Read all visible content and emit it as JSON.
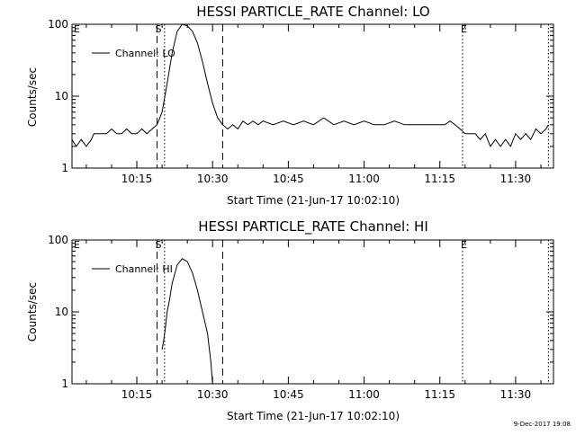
{
  "footer_stamp": "9-Dec-2017 19:08",
  "chart_data": [
    {
      "type": "line",
      "title": "HESSI PARTICLE_RATE Channel: LO",
      "xlabel": "Start Time (21-Jun-17 10:02:10)",
      "ylabel": "Counts/sec",
      "yscale": "log",
      "ylim": [
        1,
        100
      ],
      "xlim": [
        "10:02:10",
        "11:37:30"
      ],
      "x_tick_labels": [
        "10:15",
        "10:30",
        "10:45",
        "11:00",
        "11:15",
        "11:30"
      ],
      "y_tick_labels": [
        "1",
        "10",
        "100"
      ],
      "legend": {
        "placement": "top-left",
        "entries": [
          "Channel: LO"
        ]
      },
      "markers": [
        {
          "label": "E",
          "time": "10:02:10",
          "style": "none"
        },
        {
          "label": "S",
          "time": "10:19:00",
          "style": "dashed"
        },
        {
          "label": "",
          "time": "10:20:30",
          "style": "dotted"
        },
        {
          "label": "",
          "time": "10:32:00",
          "style": "dashed"
        },
        {
          "label": "E",
          "time": "11:19:30",
          "style": "dotted"
        },
        {
          "label": "",
          "time": "11:36:30",
          "style": "dotted"
        }
      ],
      "series": [
        {
          "name": "Channel: LO",
          "x": [
            "10:02:10",
            "10:03:00",
            "10:04:00",
            "10:05:00",
            "10:06:00",
            "10:06:30",
            "10:08:00",
            "10:09:00",
            "10:10:00",
            "10:11:00",
            "10:12:00",
            "10:13:00",
            "10:14:00",
            "10:15:00",
            "10:16:00",
            "10:17:00",
            "10:18:00",
            "10:19:00",
            "10:20:00",
            "10:21:00",
            "10:22:00",
            "10:23:00",
            "10:24:00",
            "10:25:00",
            "10:26:00",
            "10:27:00",
            "10:28:00",
            "10:29:00",
            "10:30:00",
            "10:31:00",
            "10:32:00",
            "10:33:00",
            "10:34:00",
            "10:35:00",
            "10:36:00",
            "10:37:00",
            "10:38:00",
            "10:39:00",
            "10:40:00",
            "10:42:00",
            "10:44:00",
            "10:46:00",
            "10:48:00",
            "10:50:00",
            "10:52:00",
            "10:54:00",
            "10:56:00",
            "10:58:00",
            "11:00:00",
            "11:02:00",
            "11:04:00",
            "11:06:00",
            "11:08:00",
            "11:10:00",
            "11:12:00",
            "11:14:00",
            "11:16:00",
            "11:17:00",
            "11:18:00",
            "11:19:00",
            "11:20:00",
            "11:21:00",
            "11:22:00",
            "11:23:00",
            "11:24:00",
            "11:25:00",
            "11:26:00",
            "11:27:00",
            "11:28:00",
            "11:29:00",
            "11:30:00",
            "11:31:00",
            "11:32:00",
            "11:33:00",
            "11:34:00",
            "11:35:00",
            "11:36:00",
            "11:36:30"
          ],
          "y": [
            2.5,
            2,
            2.5,
            2,
            2.5,
            3,
            3,
            3,
            3.5,
            3,
            3,
            3.5,
            3,
            3,
            3.5,
            3,
            3.5,
            4,
            6,
            15,
            40,
            80,
            100,
            95,
            80,
            55,
            30,
            15,
            8,
            5,
            4,
            3.5,
            4,
            3.5,
            4.5,
            4,
            4.5,
            4,
            4.5,
            4,
            4.5,
            4,
            4.5,
            4,
            5,
            4,
            4.5,
            4,
            4.5,
            4,
            4,
            4.5,
            4,
            4,
            4,
            4,
            4,
            4.5,
            4,
            3.5,
            3,
            3,
            3,
            2.5,
            3,
            2,
            2.5,
            2,
            2.5,
            2,
            3,
            2.5,
            3,
            2.5,
            3.5,
            3,
            3.5,
            4
          ]
        }
      ]
    },
    {
      "type": "line",
      "title": "HESSI PARTICLE_RATE Channel: HI",
      "xlabel": "Start Time (21-Jun-17 10:02:10)",
      "ylabel": "Counts/sec",
      "yscale": "log",
      "ylim": [
        1,
        100
      ],
      "xlim": [
        "10:02:10",
        "11:37:30"
      ],
      "x_tick_labels": [
        "10:15",
        "10:30",
        "10:45",
        "11:00",
        "11:15",
        "11:30"
      ],
      "y_tick_labels": [
        "1",
        "10",
        "100"
      ],
      "legend": {
        "placement": "top-left",
        "entries": [
          "Channel: HI"
        ]
      },
      "markers": [
        {
          "label": "E",
          "time": "10:02:10",
          "style": "none"
        },
        {
          "label": "S",
          "time": "10:19:00",
          "style": "dashed"
        },
        {
          "label": "",
          "time": "10:20:30",
          "style": "dotted"
        },
        {
          "label": "",
          "time": "10:32:00",
          "style": "dashed"
        },
        {
          "label": "E",
          "time": "11:19:30",
          "style": "dotted"
        },
        {
          "label": "",
          "time": "11:36:30",
          "style": "dotted"
        }
      ],
      "series": [
        {
          "name": "Channel: HI",
          "x": [
            "10:20:00",
            "10:20:20",
            "10:20:40",
            "10:21:00",
            "10:21:30",
            "10:22:00",
            "10:23:00",
            "10:24:00",
            "10:25:00",
            "10:26:00",
            "10:27:00",
            "10:28:00",
            "10:29:00",
            "10:29:40",
            "10:30:00"
          ],
          "y": [
            3,
            4,
            6,
            10,
            15,
            25,
            45,
            55,
            50,
            35,
            20,
            10,
            5,
            2,
            1
          ]
        }
      ]
    }
  ]
}
